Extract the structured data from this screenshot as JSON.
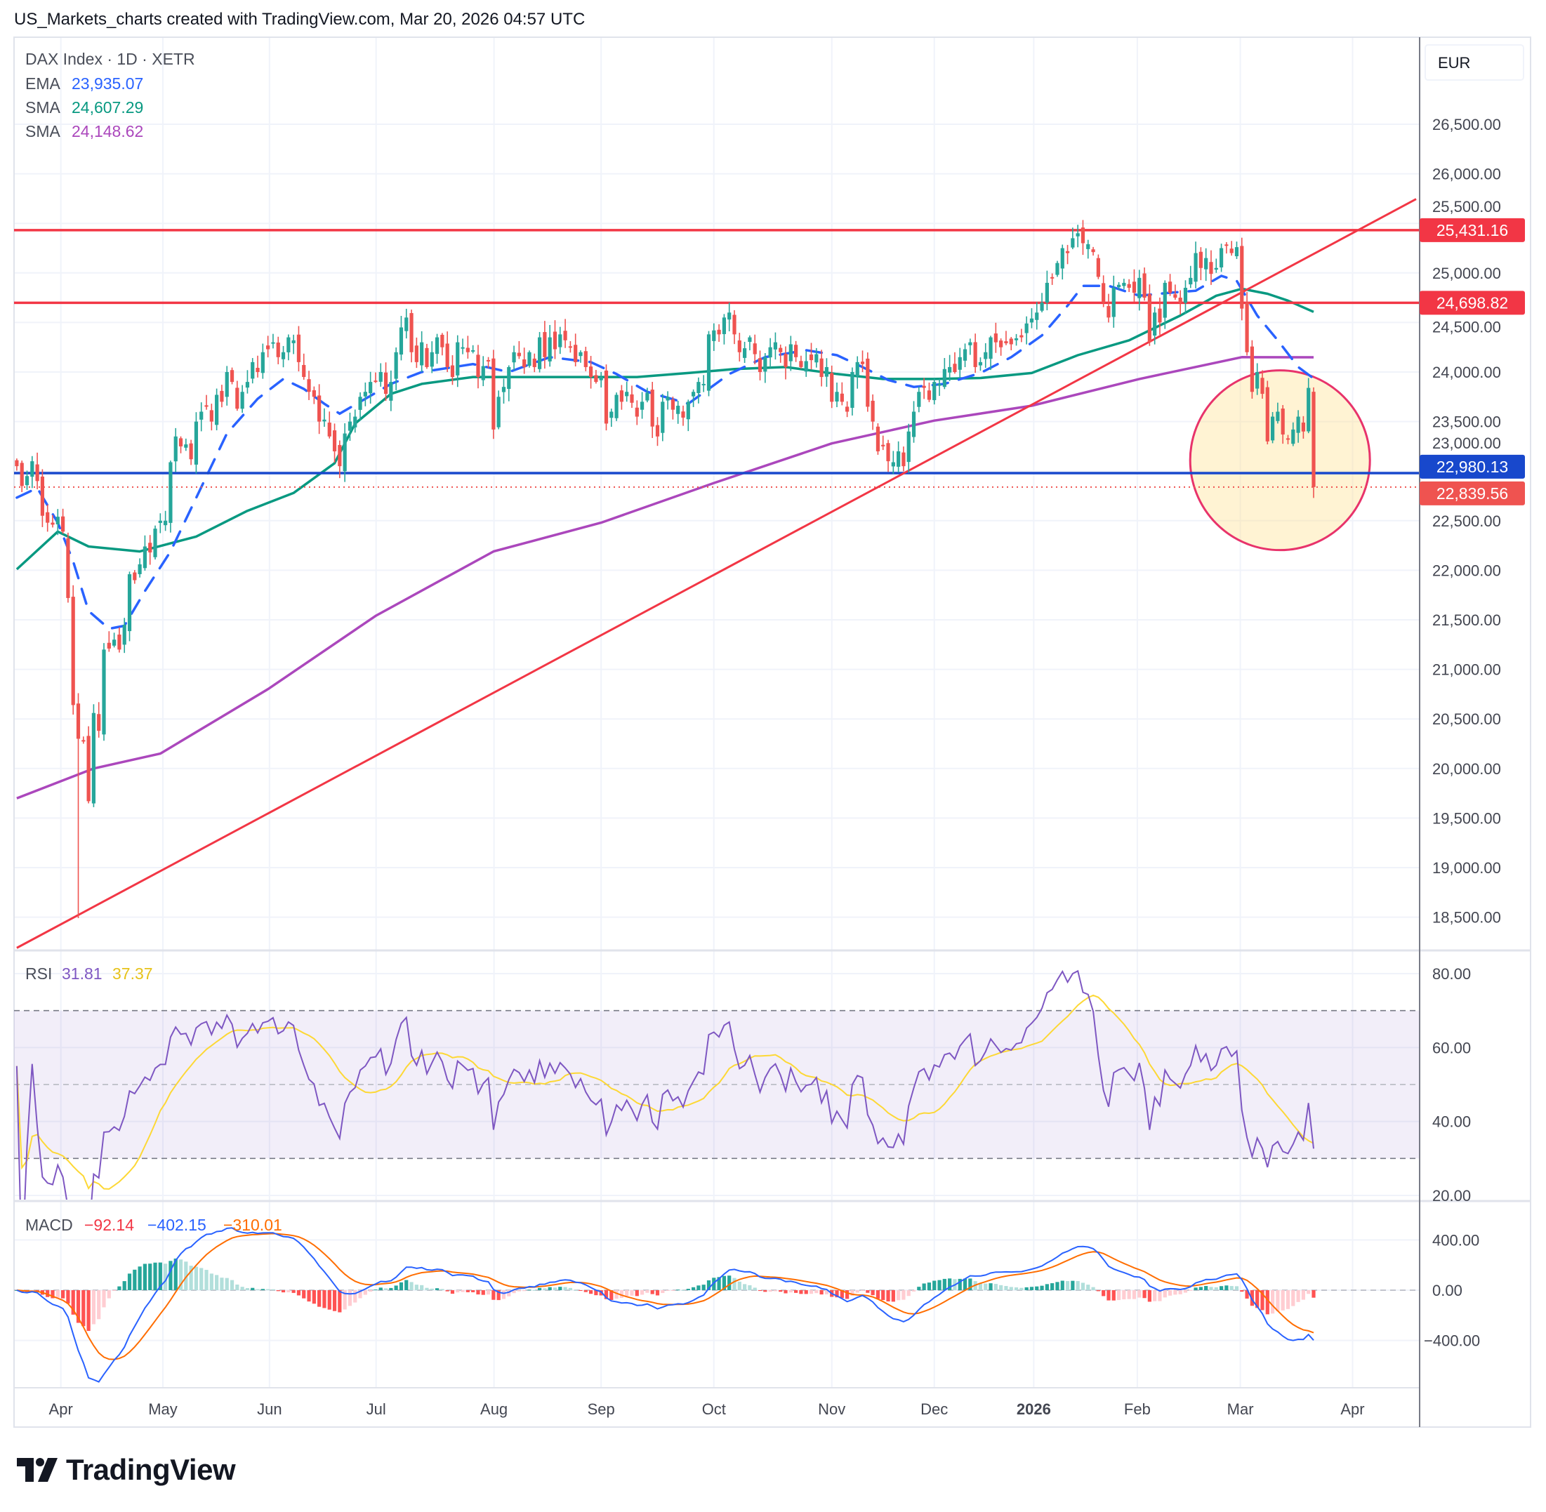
{
  "header": {
    "title": "US_Markets_charts created with TradingView.com, Mar 20, 2026 04:57 UTC"
  },
  "legend": {
    "symbol": "DAX Index · 1D · XETR",
    "ema_label": "EMA",
    "ema_value": "23,935.07",
    "sma1_label": "SMA",
    "sma1_value": "24,607.29",
    "sma2_label": "SMA",
    "sma2_value": "24,148.62"
  },
  "currency": "EUR",
  "price_axis": {
    "ticks": [
      26500,
      26000,
      25500,
      25000,
      24500,
      24000,
      23500,
      23000,
      22500,
      22000,
      21500,
      21000,
      20500,
      20000,
      19500,
      19000,
      18500
    ],
    "labels": [
      "26,500.00",
      "26,000.00",
      "25,500.00",
      "25,000.00",
      "24,500.00",
      "24,000.00",
      "23,500.00",
      "23,000.00",
      "22,500.00",
      "22,000.00",
      "21,500.00",
      "21,000.00",
      "20,500.00",
      "20,000.00",
      "19,500.00",
      "19,000.00",
      "18,500.00"
    ]
  },
  "badges": [
    {
      "label": "25,431.16",
      "price": 25431.16,
      "color": "#f23645"
    },
    {
      "label": "24,698.82",
      "price": 24698.82,
      "color": "#f23645"
    },
    {
      "label": "22,980.13",
      "price": 22980.13,
      "color": "#1848cc"
    },
    {
      "label": "22,839.56",
      "price": 22839.56,
      "color": "#ef5350"
    }
  ],
  "rsi": {
    "label": "RSI",
    "value": "31.81",
    "ma_value": "37.37",
    "axis_values": [
      80,
      60,
      40,
      20
    ],
    "axis_labels": [
      "80.00",
      "60.00",
      "40.00",
      "20.00"
    ],
    "upper": 70,
    "middle": 50,
    "lower": 30,
    "period": 14,
    "color": "#7e57c2",
    "ma_color": "#fdd835"
  },
  "macd": {
    "label": "MACD",
    "hist_value": "−92.14",
    "macd_value": "−402.15",
    "signal_value": "−310.01",
    "axis_values": [
      400,
      0,
      -400
    ],
    "axis_labels": [
      "400.00",
      "0.00",
      "−400.00"
    ],
    "fast": 12,
    "slow": 26,
    "signal": 9
  },
  "time_axis": [
    {
      "label": "Apr",
      "index": 8.6,
      "bold": false
    },
    {
      "label": "May",
      "index": 28.5,
      "bold": false
    },
    {
      "label": "Jun",
      "index": 49.3,
      "bold": false
    },
    {
      "label": "Jul",
      "index": 70.1,
      "bold": false
    },
    {
      "label": "Aug",
      "index": 93.1,
      "bold": false
    },
    {
      "label": "Sep",
      "index": 114,
      "bold": false
    },
    {
      "label": "Oct",
      "index": 136,
      "bold": false
    },
    {
      "label": "Nov",
      "index": 159,
      "bold": false
    },
    {
      "label": "Dec",
      "index": 179,
      "bold": false
    },
    {
      "label": "2026",
      "index": 198.4,
      "bold": true
    },
    {
      "label": "Feb",
      "index": 218.6,
      "bold": false
    },
    {
      "label": "Mar",
      "index": 238.7,
      "bold": false
    },
    {
      "label": "Apr",
      "index": 260.6,
      "bold": false
    }
  ],
  "colors": {
    "up": "#26a69a",
    "down": "#ef5350",
    "ema": "#2962ff",
    "sma50": "#089981",
    "sma200": "#ab47bc",
    "resistance": "#f23645",
    "support": "#1848cc",
    "trendline": "#f23645",
    "macd_line": "#2962ff",
    "signal_line": "#ff6d00",
    "hist_label": "#f23645"
  },
  "chart_data": {
    "type": "candlestick",
    "title": "DAX Index · 1D · XETR",
    "ylim": [
      18200,
      26900
    ],
    "closes": [
      23050,
      22850,
      22950,
      23100,
      22900,
      22550,
      22480,
      22460,
      22540,
      22390,
      21720,
      20640,
      20300,
      20280,
      19670,
      20560,
      20380,
      21200,
      21210,
      21300,
      21200,
      21450,
      21960,
      21900,
      22060,
      22240,
      22180,
      22420,
      22500,
      22500,
      23090,
      23350,
      23250,
      23270,
      23120,
      23500,
      23600,
      23650,
      23500,
      23770,
      23700,
      24000,
      23900,
      23630,
      23800,
      23900,
      24100,
      24000,
      24200,
      24230,
      24300,
      24150,
      24200,
      24350,
      24320,
      24100,
      23950,
      23800,
      23750,
      23500,
      23520,
      23350,
      23200,
      23050,
      23380,
      23500,
      23550,
      23750,
      23800,
      23900,
      23909,
      24000,
      23780,
      23900,
      24200,
      24450,
      24550,
      24200,
      24100,
      24300,
      24050,
      24200,
      24350,
      24250,
      24050,
      23950,
      24300,
      24250,
      24200,
      24220,
      23950,
      24060,
      24120,
      23420,
      23750,
      23850,
      24050,
      24200,
      24160,
      24050,
      24200,
      24050,
      24350,
      24150,
      24350,
      24230,
      24380,
      24320,
      24250,
      24100,
      24200,
      24050,
      23950,
      23900,
      23950,
      23480,
      23600,
      23770,
      23700,
      23800,
      23690,
      23550,
      23700,
      23790,
      23450,
      23350,
      23700,
      23750,
      23620,
      23660,
      23540,
      23700,
      23800,
      23900,
      23880,
      24380,
      24420,
      24380,
      24550,
      24600,
      24380,
      24200,
      24240,
      24350,
      24180,
      24000,
      24150,
      24250,
      24300,
      24200,
      24050,
      24280,
      24150,
      24050,
      24110,
      24120,
      24180,
      23950,
      24050,
      23700,
      23800,
      23700,
      23600,
      24000,
      24100,
      24080,
      23650,
      23500,
      23200,
      23250,
      23100,
      23090,
      23200,
      23050,
      23400,
      23600,
      23800,
      23840,
      23720,
      23900,
      23880,
      24030,
      24050,
      24000,
      24150,
      24230,
      24300,
      24050,
      24100,
      24200,
      24350,
      24300,
      24250,
      24290,
      24280,
      24340,
      24350,
      24490,
      24540,
      24600,
      24700,
      24900,
      24950,
      25100,
      25250,
      25200,
      25350,
      25400,
      25300,
      25290,
      25210,
      24960,
      24700,
      24550,
      24850,
      24880,
      24900,
      24850,
      24800,
      24950,
      24750,
      24300,
      24600,
      24500,
      24900,
      24800,
      24750,
      24700,
      24850,
      24950,
      25200,
      25050,
      25150,
      24990,
      25050,
      25250,
      25280,
      25200,
      25260,
      24640,
      24200,
      23800,
      24000,
      23780,
      23300,
      23550,
      23600,
      23370,
      23320,
      23420,
      23550,
      23400,
      23840,
      22840
    ],
    "low_overrides": {
      "12": 18490
    },
    "ema": [
      [
        0,
        22733
      ],
      [
        4,
        22830
      ],
      [
        8,
        22480
      ],
      [
        11,
        22090
      ],
      [
        14,
        21590
      ],
      [
        18,
        21410
      ],
      [
        21,
        21440
      ],
      [
        25,
        21790
      ],
      [
        30,
        22190
      ],
      [
        35,
        22730
      ],
      [
        41,
        23380
      ],
      [
        47,
        23730
      ],
      [
        52,
        23930
      ],
      [
        56,
        23830
      ],
      [
        60,
        23680
      ],
      [
        63,
        23580
      ],
      [
        68,
        23730
      ],
      [
        73,
        23880
      ],
      [
        79,
        24000
      ],
      [
        89,
        24080
      ],
      [
        96,
        24000
      ],
      [
        104,
        24150
      ],
      [
        112,
        24100
      ],
      [
        117,
        23980
      ],
      [
        123,
        23800
      ],
      [
        131,
        23680
      ],
      [
        135,
        23830
      ],
      [
        139,
        23980
      ],
      [
        146,
        24150
      ],
      [
        154,
        24220
      ],
      [
        160,
        24170
      ],
      [
        165,
        24050
      ],
      [
        170,
        23920
      ],
      [
        175,
        23850
      ],
      [
        181,
        23880
      ],
      [
        188,
        23990
      ],
      [
        194,
        24150
      ],
      [
        200,
        24370
      ],
      [
        205,
        24670
      ],
      [
        208,
        24870
      ],
      [
        213,
        24870
      ],
      [
        219,
        24770
      ],
      [
        225,
        24800
      ],
      [
        230,
        24820
      ],
      [
        235,
        24970
      ],
      [
        238,
        24920
      ],
      [
        242,
        24570
      ],
      [
        246,
        24320
      ],
      [
        250,
        24050
      ],
      [
        253,
        23935
      ]
    ],
    "sma50": [
      [
        0,
        22010
      ],
      [
        8,
        22390
      ],
      [
        14,
        22240
      ],
      [
        24,
        22190
      ],
      [
        35,
        22340
      ],
      [
        45,
        22600
      ],
      [
        54,
        22780
      ],
      [
        62,
        23080
      ],
      [
        66,
        23480
      ],
      [
        73,
        23780
      ],
      [
        79,
        23880
      ],
      [
        89,
        23950
      ],
      [
        102,
        23950
      ],
      [
        121,
        23950
      ],
      [
        131,
        23990
      ],
      [
        140,
        24030
      ],
      [
        150,
        24050
      ],
      [
        160,
        23980
      ],
      [
        169,
        23930
      ],
      [
        179,
        23930
      ],
      [
        188,
        23940
      ],
      [
        198,
        23990
      ],
      [
        207,
        24170
      ],
      [
        217,
        24320
      ],
      [
        227,
        24570
      ],
      [
        234,
        24770
      ],
      [
        239,
        24840
      ],
      [
        244,
        24790
      ],
      [
        248,
        24720
      ],
      [
        253,
        24607
      ]
    ],
    "sma200": [
      [
        0,
        19700
      ],
      [
        15,
        20000
      ],
      [
        28,
        20150
      ],
      [
        49,
        20800
      ],
      [
        70,
        21540
      ],
      [
        93,
        22190
      ],
      [
        114,
        22480
      ],
      [
        136,
        22880
      ],
      [
        159,
        23280
      ],
      [
        179,
        23510
      ],
      [
        198,
        23660
      ],
      [
        219,
        23930
      ],
      [
        239,
        24150
      ],
      [
        253,
        24149
      ]
    ],
    "hlines": [
      {
        "price": 25431.16,
        "color": "#f23645",
        "style": "solid"
      },
      {
        "price": 24698.82,
        "color": "#f23645",
        "style": "solid"
      },
      {
        "price": 22980.13,
        "color": "#1848cc",
        "style": "solid"
      },
      {
        "price": 22839.56,
        "color": "#ef5350",
        "style": "dotted"
      }
    ],
    "trendline": [
      [
        0,
        18190
      ],
      [
        273,
        25745
      ]
    ],
    "highlight": {
      "center_index": 247,
      "center_price": 23110
    }
  },
  "brand": {
    "name": "TradingView"
  }
}
